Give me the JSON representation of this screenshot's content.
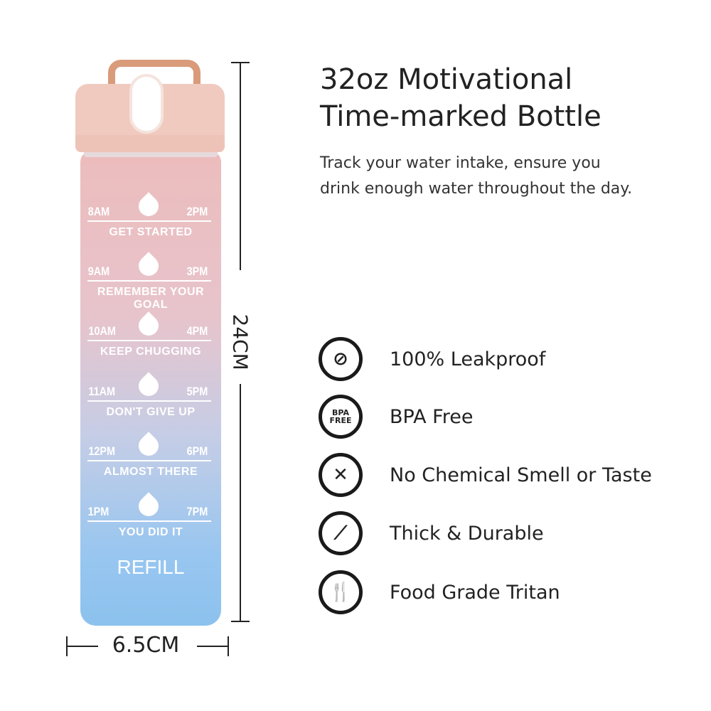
{
  "title_lines": [
    "32oz Motivational",
    "Time-marked Bottle"
  ],
  "description_lines": [
    "Track your water intake, ensure you",
    "drink enough water throughout the day."
  ],
  "dimensions": {
    "height": "24CM",
    "width": "6.5CM"
  },
  "bottle": {
    "colors": {
      "top": "#ecbcbc",
      "bottom": "#8cc2ee",
      "cap": "#f0cabe"
    },
    "markers": [
      {
        "left": "8AM",
        "right": "2PM",
        "message": "GET STARTED"
      },
      {
        "left": "9AM",
        "right": "3PM",
        "message": "REMEMBER YOUR GOAL"
      },
      {
        "left": "10AM",
        "right": "4PM",
        "message": "KEEP CHUGGING"
      },
      {
        "left": "11AM",
        "right": "5PM",
        "message": "DON'T GIVE UP"
      },
      {
        "left": "12PM",
        "right": "6PM",
        "message": "ALMOST THERE"
      },
      {
        "left": "1PM",
        "right": "7PM",
        "message": "YOU DID IT"
      }
    ],
    "refill": "REFILL"
  },
  "features": [
    {
      "icon": "no-leak-icon",
      "label": "100% Leakproof",
      "glyph": "⊘"
    },
    {
      "icon": "bpa-free-icon",
      "label": "BPA Free",
      "glyph": "BPA FREE"
    },
    {
      "icon": "no-smell-icon",
      "label": "No Chemical Smell or Taste",
      "glyph": "✕"
    },
    {
      "icon": "durable-icon",
      "label": "Thick & Durable",
      "glyph": "⟋"
    },
    {
      "icon": "utensils-icon",
      "label": "Food Grade Tritan",
      "glyph": "🍴"
    }
  ]
}
